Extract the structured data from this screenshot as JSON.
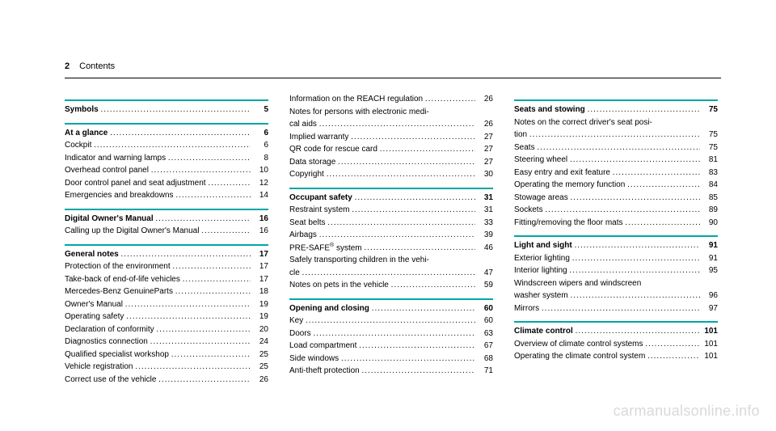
{
  "header": {
    "page_number": "2",
    "title": "Contents"
  },
  "columns": [
    [
      {
        "type": "rule"
      },
      {
        "type": "row",
        "label": "Symbols",
        "page": "5",
        "bold": true
      },
      {
        "type": "rule"
      },
      {
        "type": "row",
        "label": "At a glance",
        "page": "6",
        "bold": true
      },
      {
        "type": "row",
        "label": "Cockpit",
        "page": "6"
      },
      {
        "type": "row",
        "label": "Indicator and warning lamps",
        "page": "8"
      },
      {
        "type": "row",
        "label": "Overhead control panel",
        "page": "10"
      },
      {
        "type": "row",
        "label": "Door control panel and seat adjustment",
        "page": "12"
      },
      {
        "type": "row",
        "label": "Emergencies and breakdowns",
        "page": "14"
      },
      {
        "type": "rule"
      },
      {
        "type": "row",
        "label": "Digital Owner's Manual",
        "page": "16",
        "bold": true
      },
      {
        "type": "row",
        "label": "Calling up the Digital Owner's Manual",
        "page": "16"
      },
      {
        "type": "rule"
      },
      {
        "type": "row",
        "label": "General notes",
        "page": "17",
        "bold": true
      },
      {
        "type": "row",
        "label": "Protection of the environment",
        "page": "17"
      },
      {
        "type": "row",
        "label": "Take-back of end-of-life vehicles",
        "page": "17"
      },
      {
        "type": "row",
        "label": "Mercedes-Benz GenuineParts",
        "page": "18"
      },
      {
        "type": "row",
        "label": "Owner's Manual",
        "page": "19"
      },
      {
        "type": "row",
        "label": "Operating safety",
        "page": "19"
      },
      {
        "type": "row",
        "label": "Declaration of conformity",
        "page": "20"
      },
      {
        "type": "row",
        "label": "Diagnostics connection",
        "page": "24"
      },
      {
        "type": "row",
        "label": "Qualified specialist workshop",
        "page": "25"
      },
      {
        "type": "row",
        "label": "Vehicle registration",
        "page": "25"
      },
      {
        "type": "row",
        "label": "Correct use of the vehicle",
        "page": "26"
      }
    ],
    [
      {
        "type": "row",
        "label": "Information on the REACH regulation",
        "page": "26"
      },
      {
        "type": "multirow",
        "first": "Notes for persons with electronic medi-",
        "label": "cal aids",
        "page": "26"
      },
      {
        "type": "row",
        "label": "Implied warranty",
        "page": "27"
      },
      {
        "type": "row",
        "label": "QR code for rescue card",
        "page": "27"
      },
      {
        "type": "row",
        "label": "Data storage",
        "page": "27"
      },
      {
        "type": "row",
        "label": "Copyright",
        "page": "30"
      },
      {
        "type": "rule"
      },
      {
        "type": "row",
        "label": "Occupant safety",
        "page": "31",
        "bold": true
      },
      {
        "type": "row",
        "label": "Restraint system",
        "page": "31"
      },
      {
        "type": "row",
        "label": "Seat belts",
        "page": "33"
      },
      {
        "type": "row",
        "label": "Airbags",
        "page": "39"
      },
      {
        "type": "row",
        "label_html": "PRE-SAFE<span class=\"sup\">®</span> system",
        "page": "46"
      },
      {
        "type": "multirow",
        "first": "Safely transporting children in the vehi-",
        "label": "cle",
        "page": "47"
      },
      {
        "type": "row",
        "label": "Notes on pets in the vehicle",
        "page": "59"
      },
      {
        "type": "rule"
      },
      {
        "type": "row",
        "label": "Opening and closing",
        "page": "60",
        "bold": true
      },
      {
        "type": "row",
        "label": "Key",
        "page": "60"
      },
      {
        "type": "row",
        "label": "Doors",
        "page": "63"
      },
      {
        "type": "row",
        "label": "Load compartment",
        "page": "67"
      },
      {
        "type": "row",
        "label": "Side windows",
        "page": "68"
      },
      {
        "type": "row",
        "label": "Anti-theft protection",
        "page": "71"
      }
    ],
    [
      {
        "type": "rule"
      },
      {
        "type": "row",
        "label": "Seats and stowing",
        "page": "75",
        "bold": true
      },
      {
        "type": "multirow",
        "first": "Notes on the correct driver's seat posi-",
        "label": "tion",
        "page": "75"
      },
      {
        "type": "row",
        "label": "Seats",
        "page": "75"
      },
      {
        "type": "row",
        "label": "Steering wheel",
        "page": "81"
      },
      {
        "type": "row",
        "label": "Easy entry and exit feature",
        "page": "83"
      },
      {
        "type": "row",
        "label": "Operating the memory function",
        "page": "84"
      },
      {
        "type": "row",
        "label": "Stowage areas",
        "page": "85"
      },
      {
        "type": "row",
        "label": "Sockets",
        "page": "89"
      },
      {
        "type": "row",
        "label": "Fitting/removing the floor mats",
        "page": "90"
      },
      {
        "type": "rule"
      },
      {
        "type": "row",
        "label": "Light and sight",
        "page": "91",
        "bold": true
      },
      {
        "type": "row",
        "label": "Exterior lighting",
        "page": "91"
      },
      {
        "type": "row",
        "label": "Interior lighting",
        "page": "95"
      },
      {
        "type": "multirow",
        "first": "Windscreen wipers and windscreen",
        "label": "washer system",
        "page": "96"
      },
      {
        "type": "row",
        "label": "Mirrors",
        "page": "97"
      },
      {
        "type": "rule"
      },
      {
        "type": "row",
        "label": "Climate control",
        "page": "101",
        "bold": true
      },
      {
        "type": "row",
        "label": "Overview of climate control systems",
        "page": "101"
      },
      {
        "type": "row",
        "label": "Operating the climate control system",
        "page": "101"
      }
    ]
  ],
  "watermark": "carmanualsonline.info",
  "dots": "............................................................................................"
}
